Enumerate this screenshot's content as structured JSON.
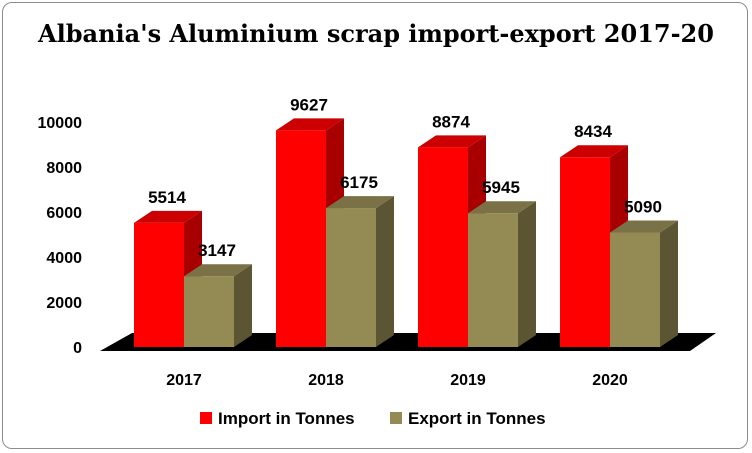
{
  "chart_data": {
    "type": "bar",
    "title": "Albania's Aluminium scrap import-export 2017-20",
    "categories": [
      "2017",
      "2018",
      "2019",
      "2020"
    ],
    "series": [
      {
        "name": "Import in Tonnes",
        "values": [
          5514,
          9627,
          8874,
          8434
        ]
      },
      {
        "name": "Export in Tonnes",
        "values": [
          3147,
          6175,
          5945,
          5090
        ]
      }
    ],
    "ylim": [
      0,
      10000
    ],
    "yticks": [
      "0",
      "2000",
      "4000",
      "6000",
      "8000",
      "10000"
    ],
    "legend_position": "bottom",
    "grid": false,
    "colors": {
      "import_front": "#ff0000",
      "import_side": "#a80000",
      "import_top": "#cc0000",
      "export_front": "#948a54",
      "export_side": "#5c5533",
      "export_top": "#7a7146",
      "floor": "#000000"
    }
  }
}
